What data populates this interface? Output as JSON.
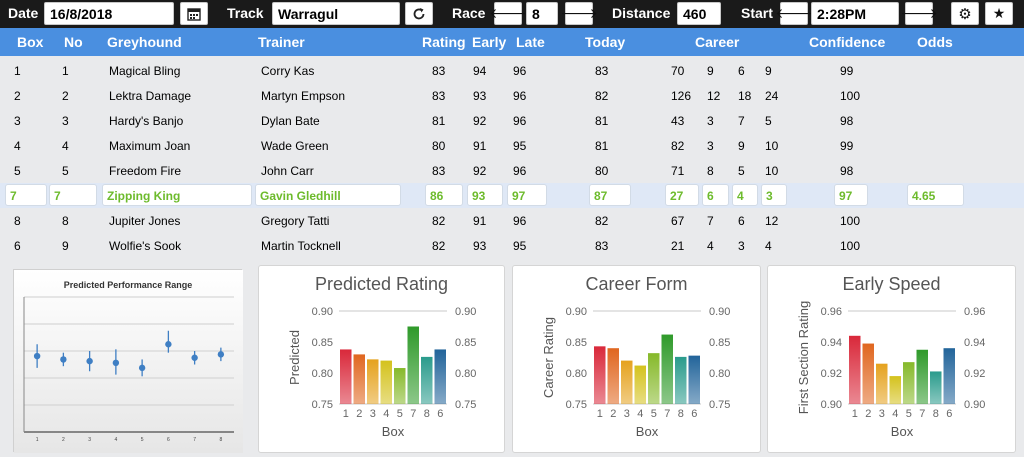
{
  "toolbar": {
    "date_label": "Date",
    "date_value": "16/8/2018",
    "track_label": "Track",
    "track_value": "Warragul",
    "race_label": "Race",
    "race_value": "8",
    "distance_label": "Distance",
    "distance_value": "460",
    "start_label": "Start",
    "start_value": "2:28PM",
    "icons": {
      "calendar": "calendar-icon",
      "refresh": "refresh-icon",
      "prev": "arrow-left-icon",
      "next": "arrow-right-icon",
      "settings": "gear-icon",
      "favorite": "star-icon"
    }
  },
  "table": {
    "headers": {
      "box": "Box",
      "no": "No",
      "greyhound": "Greyhound",
      "trainer": "Trainer",
      "rating": "Rating",
      "early": "Early",
      "late": "Late",
      "today": "Today",
      "career": "Career",
      "confidence": "Confidence",
      "odds": "Odds"
    },
    "rows": [
      {
        "box": "1",
        "no": "1",
        "greyhound": "Magical Bling",
        "trainer": "Corry Kas",
        "rating": "83",
        "early": "94",
        "late": "96",
        "today": "83",
        "c1": "70",
        "c2": "9",
        "c3": "6",
        "c4": "9",
        "confidence": "99",
        "odds": ""
      },
      {
        "box": "2",
        "no": "2",
        "greyhound": "Lektra Damage",
        "trainer": "Martyn Empson",
        "rating": "83",
        "early": "93",
        "late": "96",
        "today": "82",
        "c1": "126",
        "c2": "12",
        "c3": "18",
        "c4": "24",
        "confidence": "100",
        "odds": ""
      },
      {
        "box": "3",
        "no": "3",
        "greyhound": "Hardy's Banjo",
        "trainer": "Dylan Bate",
        "rating": "81",
        "early": "92",
        "late": "96",
        "today": "81",
        "c1": "43",
        "c2": "3",
        "c3": "7",
        "c4": "5",
        "confidence": "98",
        "odds": ""
      },
      {
        "box": "4",
        "no": "4",
        "greyhound": "Maximum Joan",
        "trainer": "Wade Green",
        "rating": "80",
        "early": "91",
        "late": "95",
        "today": "81",
        "c1": "82",
        "c2": "3",
        "c3": "9",
        "c4": "10",
        "confidence": "99",
        "odds": ""
      },
      {
        "box": "5",
        "no": "5",
        "greyhound": "Freedom Fire",
        "trainer": "John Carr",
        "rating": "83",
        "early": "92",
        "late": "96",
        "today": "80",
        "c1": "71",
        "c2": "8",
        "c3": "5",
        "c4": "10",
        "confidence": "98",
        "odds": ""
      },
      {
        "box": "7",
        "no": "7",
        "greyhound": "Zipping King",
        "trainer": "Gavin Gledhill",
        "rating": "86",
        "early": "93",
        "late": "97",
        "today": "87",
        "c1": "27",
        "c2": "6",
        "c3": "4",
        "c4": "3",
        "confidence": "97",
        "odds": "4.65"
      },
      {
        "box": "8",
        "no": "8",
        "greyhound": "Jupiter Jones",
        "trainer": "Gregory Tatti",
        "rating": "82",
        "early": "91",
        "late": "96",
        "today": "82",
        "c1": "67",
        "c2": "7",
        "c3": "6",
        "c4": "12",
        "confidence": "100",
        "odds": ""
      },
      {
        "box": "6",
        "no": "9",
        "greyhound": "Wolfie's Sook",
        "trainer": "Martin Tocknell",
        "rating": "82",
        "early": "93",
        "late": "95",
        "today": "83",
        "c1": "21",
        "c2": "4",
        "c3": "3",
        "c4": "4",
        "confidence": "100",
        "odds": ""
      }
    ],
    "selected_index": 5,
    "highlight_color": "#6dbb2c"
  },
  "colors": {
    "header_blue": "#4a8fe0",
    "topbar": "#1a1a1a"
  },
  "chart_data": [
    {
      "type": "scatter",
      "title": "Predicted Performance Range",
      "categories": [
        "1",
        "2",
        "3",
        "4",
        "5",
        "6",
        "7",
        "8"
      ],
      "values": [
        0.85,
        0.83,
        0.82,
        0.81,
        0.78,
        0.92,
        0.84,
        0.86
      ],
      "lower": [
        0.78,
        0.79,
        0.76,
        0.74,
        0.73,
        0.87,
        0.8,
        0.82
      ],
      "upper": [
        0.92,
        0.87,
        0.88,
        0.89,
        0.83,
        1.0,
        0.88,
        0.9
      ],
      "ylim": [
        0.4,
        1.2
      ]
    },
    {
      "type": "bar",
      "title": "Predicted Rating",
      "categories": [
        "1",
        "2",
        "3",
        "4",
        "5",
        "7",
        "8",
        "6"
      ],
      "values": [
        0.838,
        0.83,
        0.822,
        0.82,
        0.808,
        0.875,
        0.826,
        0.838
      ],
      "xlabel": "Box",
      "ylabel": "Predicted",
      "ylim": [
        0.75,
        0.9
      ],
      "yticks": [
        "0.90",
        "0.85",
        "0.80",
        "0.75"
      ]
    },
    {
      "type": "bar",
      "title": "Career Form",
      "categories": [
        "1",
        "2",
        "3",
        "4",
        "5",
        "7",
        "8",
        "6"
      ],
      "values": [
        0.843,
        0.84,
        0.82,
        0.812,
        0.832,
        0.862,
        0.826,
        0.828
      ],
      "xlabel": "Box",
      "ylabel": "Career Rating",
      "ylim": [
        0.75,
        0.9
      ],
      "yticks": [
        "0.90",
        "0.85",
        "0.80",
        "0.75"
      ]
    },
    {
      "type": "bar",
      "title": "Early Speed",
      "categories": [
        "1",
        "2",
        "3",
        "4",
        "5",
        "7",
        "8",
        "6"
      ],
      "values": [
        0.944,
        0.939,
        0.926,
        0.918,
        0.927,
        0.935,
        0.921,
        0.936
      ],
      "xlabel": "Box",
      "ylabel": "First Section Rating",
      "ylim": [
        0.9,
        0.96
      ],
      "yticks": [
        "0.96",
        "0.94",
        "0.92",
        "0.90"
      ]
    }
  ],
  "bar_colors": [
    "#d9283a",
    "#e0661f",
    "#e5a21e",
    "#d4c21d",
    "#86b92a",
    "#2f9a2a",
    "#2a9b8c",
    "#22649a"
  ]
}
